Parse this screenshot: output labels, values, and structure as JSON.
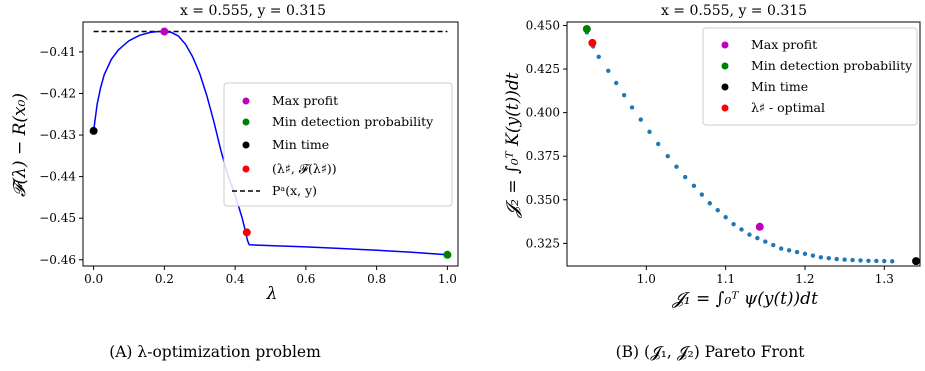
{
  "chart_data": [
    {
      "type": "line",
      "title": "x = 0.555, y = 0.315",
      "xlabel": "λ",
      "ylabel": "𝓕(λ) − R(x₀)",
      "xlim": [
        -0.03,
        1.03
      ],
      "ylim": [
        -0.4615,
        -0.4028
      ],
      "xticks": [
        "0.0",
        "0.2",
        "0.4",
        "0.6",
        "0.8",
        "1.0"
      ],
      "yticks": [
        "−0.41",
        "−0.42",
        "−0.43",
        "−0.44",
        "−0.45",
        "−0.46"
      ],
      "xtick_values": [
        0.0,
        0.2,
        0.4,
        0.6,
        0.8,
        1.0
      ],
      "ytick_values": [
        -0.41,
        -0.42,
        -0.43,
        -0.44,
        -0.45,
        -0.46
      ],
      "curve": {
        "color": "#0000ff",
        "x": [
          0.0,
          0.01,
          0.02,
          0.03,
          0.05,
          0.07,
          0.1,
          0.13,
          0.16,
          0.18,
          0.2,
          0.22,
          0.24,
          0.26,
          0.28,
          0.3,
          0.32,
          0.34,
          0.36,
          0.38,
          0.4,
          0.41,
          0.42,
          0.43,
          0.435,
          0.44,
          0.5,
          0.6,
          0.7,
          0.8,
          0.9,
          1.0
        ],
        "y": [
          -0.429,
          -0.4225,
          -0.4185,
          -0.4155,
          -0.4118,
          -0.4095,
          -0.4073,
          -0.406,
          -0.4053,
          -0.4051,
          -0.4051,
          -0.4053,
          -0.4062,
          -0.4082,
          -0.4112,
          -0.4152,
          -0.4205,
          -0.4268,
          -0.4338,
          -0.4398,
          -0.4445,
          -0.4472,
          -0.45,
          -0.4534,
          -0.4554,
          -0.4564,
          -0.4566,
          -0.4569,
          -0.4573,
          -0.4577,
          -0.4582,
          -0.4588
        ]
      },
      "reference_line": {
        "label": "Pᵃ(x, y)",
        "y": -0.4051,
        "x_range": [
          0.0,
          1.0
        ],
        "style": "dashed",
        "color": "#000000"
      },
      "points": [
        {
          "name": "Max profit",
          "x": 0.2,
          "y": -0.4051,
          "color": "#bf00bf"
        },
        {
          "name": "Min detection probability",
          "x": 1.0,
          "y": -0.4588,
          "color": "#008000"
        },
        {
          "name": "Min time",
          "x": 0.0,
          "y": -0.429,
          "color": "#000000"
        },
        {
          "name": "(λ♯, 𝓕(λ♯))",
          "x": 0.433,
          "y": -0.4534,
          "color": "#ff0000"
        }
      ],
      "legend": [
        "Max profit",
        "Min detection probability",
        "Min time",
        "(λ♯,  𝓕(λ♯))",
        "Pᵃ(x, y)"
      ],
      "legend_position": "center-right",
      "caption": "(A) λ-optimization problem"
    },
    {
      "type": "scatter",
      "title": "x = 0.555, y = 0.315",
      "xlabel": "𝓙₁ = ∫₀ᵀ ψ(y(t))dt",
      "ylabel": "𝓙₂ = ∫₀ᵀ K(y(t))dt",
      "xlim": [
        0.9,
        1.345
      ],
      "ylim": [
        0.312,
        0.452
      ],
      "xticks": [
        "1.0",
        "1.1",
        "1.2",
        "1.3"
      ],
      "yticks": [
        "0.450",
        "0.425",
        "0.400",
        "0.375",
        "0.350",
        "0.325"
      ],
      "xtick_values": [
        1.0,
        1.1,
        1.2,
        1.3
      ],
      "ytick_values": [
        0.45,
        0.425,
        0.4,
        0.375,
        0.35,
        0.325
      ],
      "series": [
        {
          "color": "#1f77b4",
          "x": [
            0.925,
            0.933,
            0.94,
            0.952,
            0.962,
            0.972,
            0.982,
            0.993,
            1.004,
            1.015,
            1.027,
            1.038,
            1.049,
            1.06,
            1.07,
            1.08,
            1.09,
            1.1,
            1.11,
            1.12,
            1.13,
            1.14,
            1.15,
            1.16,
            1.17,
            1.18,
            1.19,
            1.2,
            1.21,
            1.22,
            1.23,
            1.24,
            1.25,
            1.26,
            1.27,
            1.28,
            1.29,
            1.3,
            1.31
          ],
          "y": [
            0.446,
            0.438,
            0.432,
            0.424,
            0.417,
            0.41,
            0.403,
            0.396,
            0.389,
            0.382,
            0.375,
            0.369,
            0.363,
            0.358,
            0.353,
            0.348,
            0.344,
            0.34,
            0.336,
            0.333,
            0.33,
            0.328,
            0.326,
            0.324,
            0.322,
            0.321,
            0.32,
            0.319,
            0.318,
            0.317,
            0.3165,
            0.316,
            0.3157,
            0.3154,
            0.3152,
            0.315,
            0.3149,
            0.3148,
            0.3147
          ]
        }
      ],
      "points": [
        {
          "name": "Max profit",
          "x": 1.143,
          "y": 0.3345,
          "color": "#bf00bf"
        },
        {
          "name": "Min detection probability",
          "x": 0.925,
          "y": 0.448,
          "color": "#008000"
        },
        {
          "name": "Min time",
          "x": 1.34,
          "y": 0.3148,
          "color": "#000000"
        },
        {
          "name": "λ♯ - optimal",
          "x": 0.932,
          "y": 0.44,
          "color": "#ff0000"
        }
      ],
      "legend": [
        "Max profit",
        "Min detection probability",
        "Min time",
        "λ♯ - optimal"
      ],
      "legend_position": "upper-right",
      "caption": "(B) (𝓙₁, 𝓙₂) Pareto Front"
    }
  ]
}
